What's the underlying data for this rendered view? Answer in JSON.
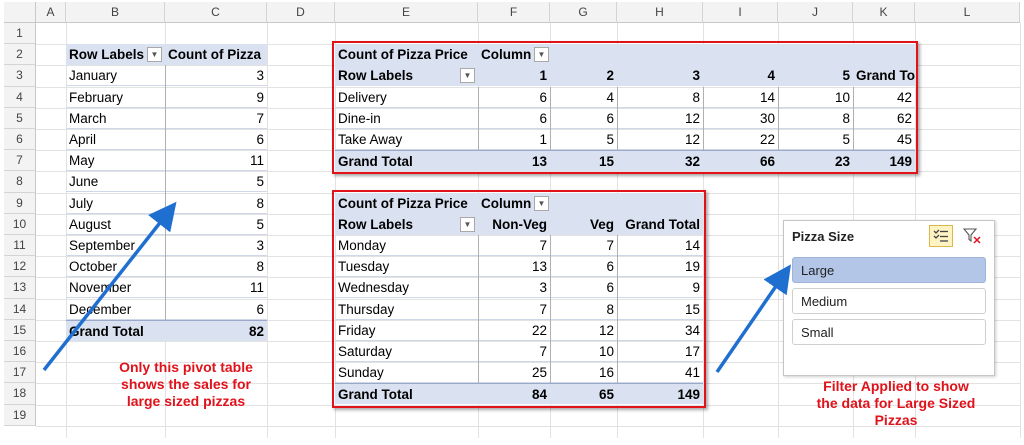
{
  "columns": [
    "A",
    "B",
    "C",
    "D",
    "E",
    "F",
    "G",
    "H",
    "I",
    "J",
    "K",
    "L"
  ],
  "rows": [
    "1",
    "2",
    "3",
    "4",
    "5",
    "6",
    "7",
    "8",
    "9",
    "10",
    "11",
    "12",
    "13",
    "14",
    "15",
    "16",
    "17",
    "18",
    "19"
  ],
  "pivot1": {
    "header_labels": "Row Labels",
    "header_count": "Count of Pizza",
    "rows": [
      {
        "label": "January",
        "value": "3"
      },
      {
        "label": "February",
        "value": "9"
      },
      {
        "label": "March",
        "value": "7"
      },
      {
        "label": "April",
        "value": "6"
      },
      {
        "label": "May",
        "value": "11"
      },
      {
        "label": "June",
        "value": "5"
      },
      {
        "label": "July",
        "value": "8"
      },
      {
        "label": "August",
        "value": "5"
      },
      {
        "label": "September",
        "value": "3"
      },
      {
        "label": "October",
        "value": "8"
      },
      {
        "label": "November",
        "value": "11"
      },
      {
        "label": "December",
        "value": "6"
      }
    ],
    "total_label": "Grand Total",
    "total_value": "82"
  },
  "pivot2": {
    "title": "Count of Pizza Price",
    "col_field": "Column",
    "row_labels": "Row Labels",
    "columns": [
      "1",
      "2",
      "3",
      "4",
      "5",
      "Grand Total"
    ],
    "rows": [
      {
        "label": "Delivery",
        "values": [
          "6",
          "4",
          "8",
          "14",
          "10",
          "42"
        ]
      },
      {
        "label": "Dine-in",
        "values": [
          "6",
          "6",
          "12",
          "30",
          "8",
          "62"
        ]
      },
      {
        "label": "Take Away",
        "values": [
          "1",
          "5",
          "12",
          "22",
          "5",
          "45"
        ]
      }
    ],
    "total": {
      "label": "Grand Total",
      "values": [
        "13",
        "15",
        "32",
        "66",
        "23",
        "149"
      ]
    }
  },
  "pivot3": {
    "title": "Count of Pizza Price",
    "col_field": "Column",
    "row_labels": "Row Labels",
    "columns": [
      "Non-Veg",
      "Veg",
      "Grand Total"
    ],
    "rows": [
      {
        "label": "Monday",
        "values": [
          "7",
          "7",
          "14"
        ]
      },
      {
        "label": "Tuesday",
        "values": [
          "13",
          "6",
          "19"
        ]
      },
      {
        "label": "Wednesday",
        "values": [
          "3",
          "6",
          "9"
        ]
      },
      {
        "label": "Thursday",
        "values": [
          "7",
          "8",
          "15"
        ]
      },
      {
        "label": "Friday",
        "values": [
          "22",
          "12",
          "34"
        ]
      },
      {
        "label": "Saturday",
        "values": [
          "7",
          "10",
          "17"
        ]
      },
      {
        "label": "Sunday",
        "values": [
          "25",
          "16",
          "41"
        ]
      }
    ],
    "total": {
      "label": "Grand Total",
      "values": [
        "84",
        "65",
        "149"
      ]
    }
  },
  "slicer": {
    "title": "Pizza Size",
    "items": [
      {
        "label": "Large",
        "selected": true
      },
      {
        "label": "Medium",
        "selected": false
      },
      {
        "label": "Small",
        "selected": false
      }
    ],
    "icons": [
      "multi-select-icon",
      "clear-filter-icon"
    ]
  },
  "annotations": {
    "left_lines": [
      "Only this pivot table",
      "shows the sales for",
      "large sized pizzas"
    ],
    "right_lines": [
      "Filter Applied to show",
      "the data for Large Sized",
      "Pizzas"
    ]
  },
  "colors": {
    "accent_red": "#e0121a",
    "arrow_blue": "#1f6fd1",
    "pivot_header": "#dae2f2",
    "slicer_selected": "#b4c6e7"
  }
}
